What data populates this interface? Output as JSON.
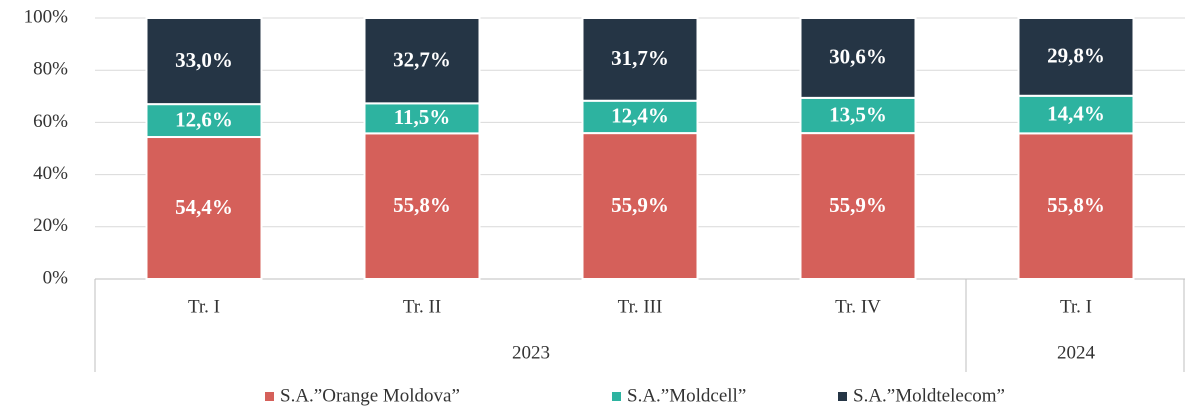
{
  "chart_data": {
    "type": "stacked_bar_100",
    "groups": [
      {
        "label": "2023",
        "categories": [
          "Tr. I",
          "Tr. II",
          "Tr. III",
          "Tr. IV"
        ]
      },
      {
        "label": "2024",
        "categories": [
          "Tr. I"
        ]
      }
    ],
    "series": [
      {
        "name": "S.A.”Orange Moldova”",
        "color": "#d5605a",
        "values": [
          54.4,
          55.8,
          55.9,
          55.9,
          55.8
        ],
        "value_labels": [
          "54,4%",
          "55,8%",
          "55,9%",
          "55,9%",
          "55,8%"
        ]
      },
      {
        "name": "S.A.”Moldcell”",
        "color": "#2db3a0",
        "values": [
          12.6,
          11.5,
          12.4,
          13.5,
          14.4
        ],
        "value_labels": [
          "12,6%",
          "11,5%",
          "12,4%",
          "13,5%",
          "14,4%"
        ]
      },
      {
        "name": "S.A.”Moldtelecom”",
        "color": "#253545",
        "values": [
          33.0,
          32.7,
          31.7,
          30.6,
          29.8
        ],
        "value_labels": [
          "33,0%",
          "32,7%",
          "31,7%",
          "30,6%",
          "29,8%"
        ]
      }
    ],
    "ylim": [
      0,
      100
    ],
    "yticks": [
      {
        "value": 0,
        "label": "0%"
      },
      {
        "value": 20,
        "label": "20%"
      },
      {
        "value": 40,
        "label": "40%"
      },
      {
        "value": 60,
        "label": "60%"
      },
      {
        "value": 80,
        "label": "80%"
      },
      {
        "value": 100,
        "label": "100%"
      }
    ],
    "grid": true,
    "legend": "bottom"
  }
}
